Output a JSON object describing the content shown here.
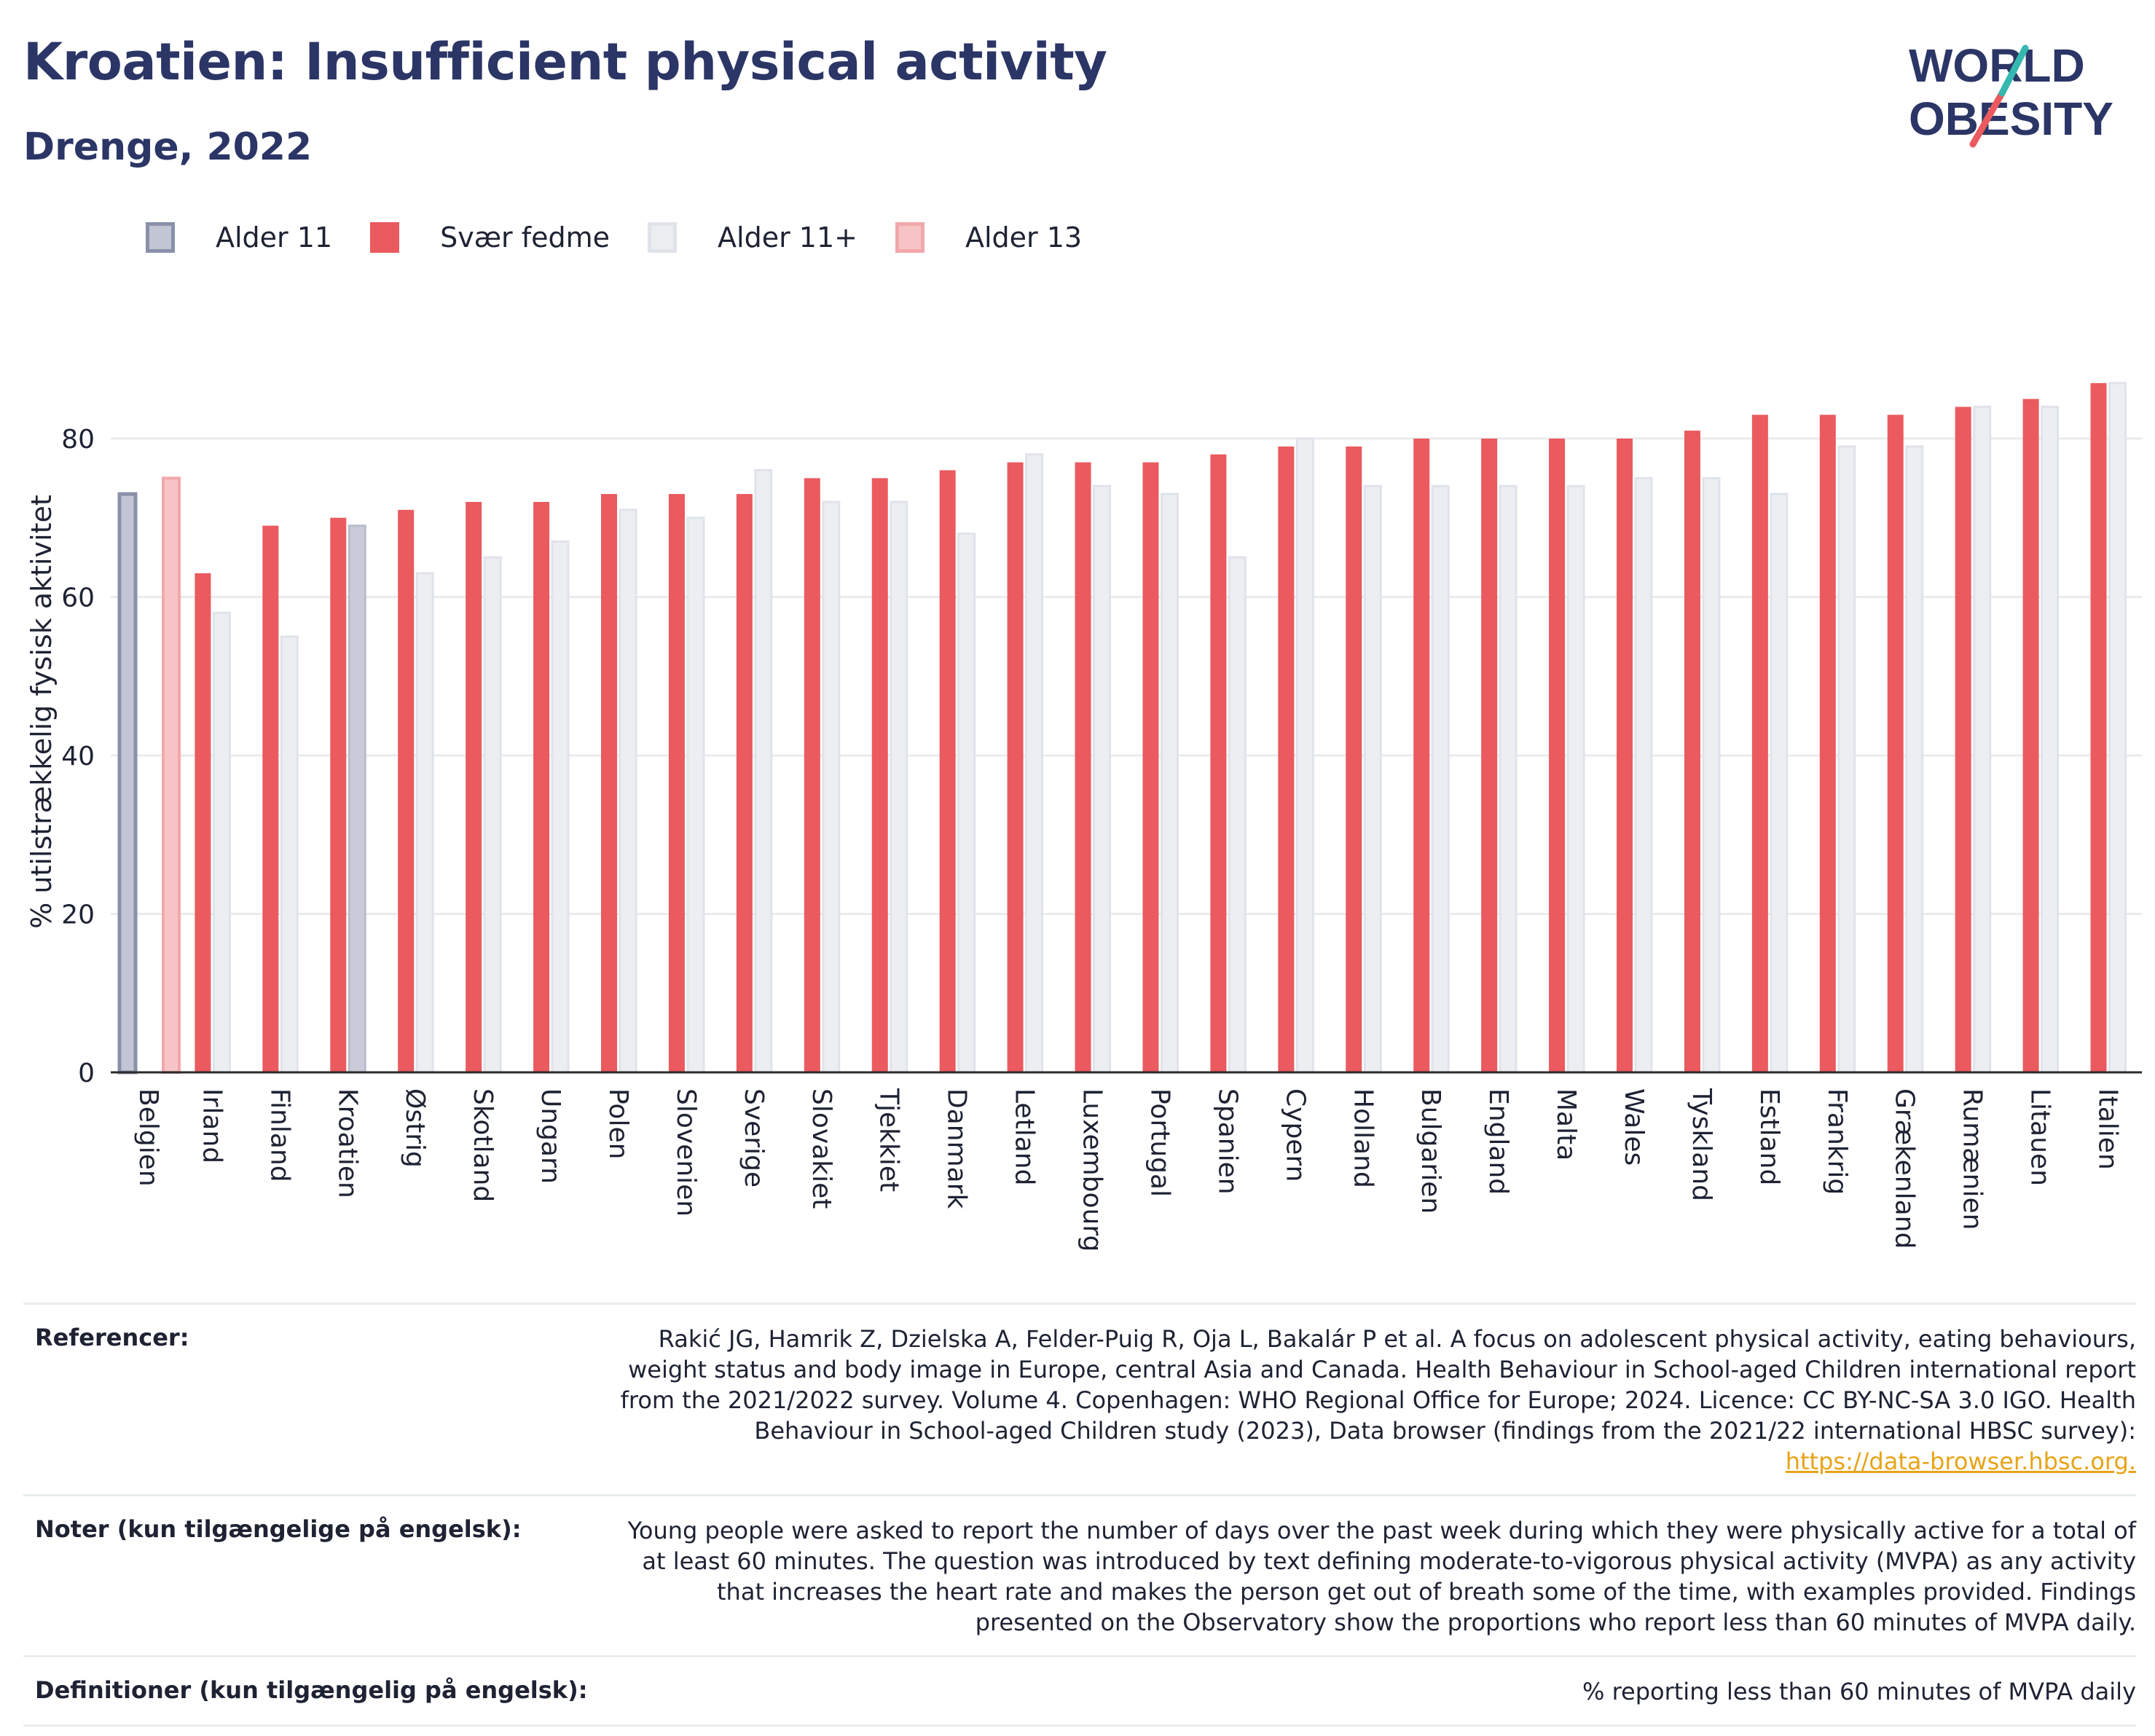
{
  "title": "Kroatien: Insufficient physical activity",
  "subtitle": "Drenge, 2022",
  "logo": {
    "line1": "WORLD",
    "line2": "OBESITY"
  },
  "legend": [
    {
      "label": "Alder 11",
      "fill": "#c2c6d4",
      "stroke": "#8a90aa"
    },
    {
      "label": "Svær fedme",
      "fill": "#ea5a5e",
      "stroke": "#ea5a5e"
    },
    {
      "label": "Alder 11+",
      "fill": "#eceef2",
      "stroke": "#e0e3ea"
    },
    {
      "label": "Alder 13",
      "fill": "#f7c4c6",
      "stroke": "#f2a8ab"
    }
  ],
  "chart_data": {
    "type": "bar",
    "ylabel": "% utilstrækkelig fysisk aktivitet",
    "xlabel": "",
    "ylim": [
      0,
      90
    ],
    "yticks": [
      0,
      20,
      40,
      60,
      80
    ],
    "grid": true,
    "categories": [
      "Belgien",
      "Irland",
      "Finland",
      "Kroatien",
      "Østrig",
      "Skotland",
      "Ungarn",
      "Polen",
      "Slovenien",
      "Sverige",
      "Slovakiet",
      "Tjekkiet",
      "Danmark",
      "Letland",
      "Luxembourg",
      "Portugal",
      "Spanien",
      "Cypern",
      "Holland",
      "Bulgarien",
      "England",
      "Malta",
      "Wales",
      "Tyskland",
      "Estland",
      "Frankrig",
      "Grækenland",
      "Rumænien",
      "Litauen",
      "Italien"
    ],
    "series": [
      {
        "name": "Alder 11",
        "values": [
          73,
          null,
          null,
          null,
          null,
          null,
          null,
          null,
          null,
          null,
          null,
          null,
          null,
          null,
          null,
          null,
          null,
          null,
          null,
          null,
          null,
          null,
          null,
          null,
          null,
          null,
          null,
          null,
          null,
          null
        ]
      },
      {
        "name": "Alder 13",
        "values": [
          75,
          null,
          null,
          null,
          null,
          null,
          null,
          null,
          null,
          null,
          null,
          null,
          null,
          null,
          null,
          null,
          null,
          null,
          null,
          null,
          null,
          null,
          null,
          null,
          null,
          null,
          null,
          null,
          null,
          null
        ]
      },
      {
        "name": "Svær fedme",
        "values": [
          null,
          63,
          69,
          70,
          71,
          72,
          72,
          73,
          73,
          73,
          75,
          75,
          76,
          77,
          77,
          77,
          78,
          79,
          79,
          80,
          80,
          80,
          80,
          81,
          83,
          83,
          83,
          84,
          85,
          87
        ]
      },
      {
        "name": "Alder 11+",
        "values": [
          null,
          58,
          55,
          69,
          63,
          65,
          67,
          71,
          70,
          76,
          72,
          72,
          68,
          78,
          74,
          73,
          65,
          80,
          74,
          74,
          74,
          74,
          75,
          75,
          73,
          79,
          79,
          84,
          84,
          87
        ]
      }
    ],
    "highlight_category": "Kroatien",
    "highlight_color": "#c9ccd8"
  },
  "notes": [
    {
      "label": "Referencer:",
      "text": "Rakić JG, Hamrik Z, Dzielska A, Felder-Puig R, Oja L, Bakalár P et al. A focus on adolescent physical activity, eating behaviours, weight status and body image in Europe, central Asia and Canada. Health Behaviour in School-aged Children international report from the 2021/2022 survey. Volume 4. Copenhagen: WHO Regional Office for Europe; 2024. Licence: CC BY-NC-SA 3.0 IGO. Health Behaviour in School-aged Children study (2023), Data browser (findings from the 2021/22 international HBSC survey): ",
      "link": "https://data-browser.hbsc.org."
    },
    {
      "label": "Noter (kun tilgængelige på engelsk):",
      "text": "Young people were asked to report the number of days over the past week during which they were physically active for a total of at least 60 minutes. The question was introduced by text defining moderate-to-vigorous physical activity (MVPA) as any activity that increases the heart rate and makes the person get out of breath some of the time, with examples provided. Findings presented on the Observatory show the proportions who report less than 60 minutes of MVPA daily."
    },
    {
      "label": "Definitioner (kun tilgængelig på engelsk):",
      "text": "% reporting less than 60 minutes of MVPA daily"
    }
  ]
}
